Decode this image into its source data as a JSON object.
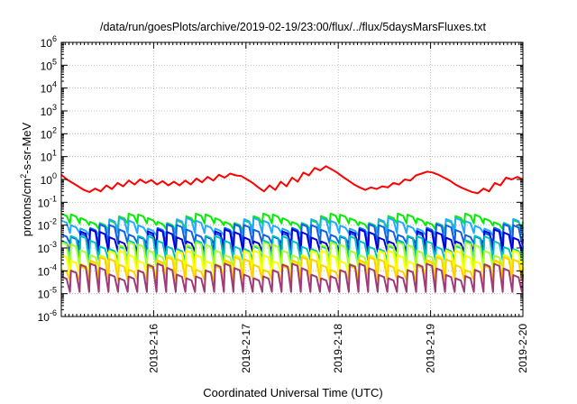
{
  "chart_data": {
    "type": "line",
    "title": "/data/run/goesPlots/archive/2019-02-19/23:00/flux/../flux/5daysMarsFluxes.txt",
    "xlabel": "Coordinated Universal Time (UTC)",
    "ylabel_parts": {
      "base": "protons/cm",
      "sup": "2",
      "rest": "-s-sr-MeV"
    },
    "y_scale": "log",
    "ylim": [
      1e-06,
      1000000.0
    ],
    "y_ticks": [
      {
        "exp": -6
      },
      {
        "exp": -5
      },
      {
        "exp": -4
      },
      {
        "exp": -3
      },
      {
        "exp": -2
      },
      {
        "exp": -1
      },
      {
        "exp": 0
      },
      {
        "exp": 1
      },
      {
        "exp": 2
      },
      {
        "exp": 3
      },
      {
        "exp": 4
      },
      {
        "exp": 5
      },
      {
        "exp": 6
      }
    ],
    "x_range": [
      "2019-02-15 00:00",
      "2019-02-20 00:00"
    ],
    "x_tick_labels": [
      "2019-2-16",
      "2019-2-17",
      "2019-2-18",
      "2019-2-19",
      "2019-2-20"
    ],
    "grid": true,
    "legend": "none",
    "series": [
      {
        "color": "#ff0000",
        "sawtooth": false,
        "values": [
          1.6,
          1.0,
          0.7,
          0.5,
          0.35,
          0.28,
          0.4,
          0.3,
          0.55,
          0.38,
          0.7,
          0.5,
          0.9,
          0.6,
          1.0,
          0.7,
          0.95,
          0.6,
          0.85,
          0.55,
          0.8,
          0.55,
          0.9,
          0.6,
          1.1,
          0.75,
          1.3,
          0.9,
          1.6,
          1.2,
          1.8,
          1.5,
          1.4,
          1.0,
          0.7,
          0.45,
          0.3,
          0.55,
          0.35,
          0.8,
          0.5,
          1.2,
          0.8,
          2.0,
          1.5,
          3.2,
          2.5,
          3.8,
          2.8,
          2.0,
          1.3,
          0.9,
          0.6,
          0.45,
          0.35,
          0.45,
          0.38,
          0.5,
          0.45,
          0.7,
          0.6,
          1.0,
          0.9,
          1.5,
          1.8,
          2.2,
          2.0,
          1.6,
          1.2,
          0.9,
          0.6,
          0.45,
          0.35,
          0.28,
          0.25,
          0.4,
          0.3,
          0.7,
          0.55,
          1.2,
          1.0,
          1.3,
          1.0
        ]
      },
      {
        "color": "#00ee00",
        "sawtooth": true,
        "base": 0.02,
        "wobble": 0.35,
        "drop": 0.012
      },
      {
        "color": "#22aaff",
        "sawtooth": true,
        "base": 0.012,
        "wobble": 0.4,
        "drop": 0.0045
      },
      {
        "color": "#1060e0",
        "sawtooth": true,
        "base": 0.006,
        "wobble": 0.45,
        "drop": 0.0016
      },
      {
        "color": "#0000dd",
        "sawtooth": true,
        "base": 0.0035,
        "wobble": 0.45,
        "drop": 0.0007
      },
      {
        "color": "#00c0c0",
        "sawtooth": true,
        "base": 0.0018,
        "wobble": 0.5,
        "drop": 0.0003
      },
      {
        "color": "#a8ff30",
        "sawtooth": true,
        "base": 0.0009,
        "wobble": 0.5,
        "drop": 0.00015
      },
      {
        "color": "#ffff00",
        "sawtooth": true,
        "base": 0.0004,
        "wobble": 0.5,
        "drop": 7e-05
      },
      {
        "color": "#ffd000",
        "sawtooth": true,
        "base": 0.0002,
        "wobble": 0.5,
        "drop": 4e-05
      },
      {
        "color": "#a03a78",
        "sawtooth": true,
        "base": 0.0001,
        "wobble": 0.55,
        "drop": 1.2e-05
      }
    ]
  }
}
